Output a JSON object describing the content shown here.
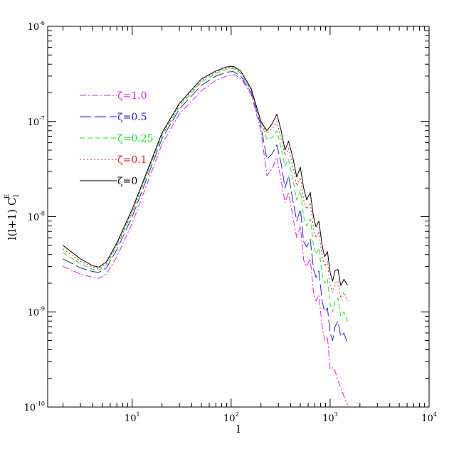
{
  "chart_data": {
    "type": "line",
    "xlabel": "l",
    "ylabel": "l(l+1) C",
    "ylabel_sub": "l",
    "ylabel_sup": "E",
    "xscale": "log",
    "yscale": "log",
    "xlim": [
      1.4,
      10000
    ],
    "ylim": [
      1e-10,
      1e-06
    ],
    "grid": false,
    "legend_position": "upper-left",
    "x_ticks": [
      {
        "value": 10,
        "base": "10",
        "exp": "1"
      },
      {
        "value": 100,
        "base": "10",
        "exp": "2"
      },
      {
        "value": 1000,
        "base": "10",
        "exp": "3"
      },
      {
        "value": 10000,
        "base": "10",
        "exp": "4"
      }
    ],
    "y_ticks": [
      {
        "value": 1e-10,
        "base": "10",
        "exp": "-10"
      },
      {
        "value": 1e-09,
        "base": "10",
        "exp": "-9"
      },
      {
        "value": 1e-08,
        "base": "10",
        "exp": "-8"
      },
      {
        "value": 1e-07,
        "base": "10",
        "exp": "-7"
      },
      {
        "value": 1e-06,
        "base": "10",
        "exp": "-6"
      }
    ],
    "series": [
      {
        "name": "ζ=1.0",
        "color": "#e020e0",
        "dash": "9,3,2,3",
        "x": [
          2,
          3,
          4,
          4.6,
          5.5,
          7,
          10,
          15,
          20,
          30,
          50,
          70,
          90,
          110,
          130,
          160,
          200,
          230,
          260,
          290,
          320,
          350,
          380,
          420,
          460,
          500,
          540,
          580,
          630,
          680,
          720,
          770,
          830,
          880,
          940,
          1000,
          1060,
          1120,
          1200,
          1280,
          1380,
          1500
        ],
        "y": [
          3e-09,
          2.5e-09,
          2.3e-09,
          2.25e-09,
          2.5e-09,
          3.8e-09,
          8.5e-09,
          2.6e-08,
          5.8e-08,
          1.2e-07,
          2.1e-07,
          2.7e-07,
          3e-07,
          3.1e-07,
          2.7e-07,
          1.9e-07,
          8e-08,
          2.7e-08,
          3.2e-08,
          4.2e-08,
          2.4e-08,
          1.4e-08,
          1.8e-08,
          1e-08,
          6e-09,
          8e-09,
          3.5e-09,
          3e-09,
          3.6e-09,
          1.6e-09,
          1.3e-09,
          1.5e-09,
          7e-10,
          5e-10,
          5.5e-10,
          2.5e-10,
          2.6e-10,
          2.4e-10,
          1.9e-10,
          1.6e-10,
          1.3e-10,
          1.05e-10
        ]
      },
      {
        "name": "ζ=0.5",
        "color": "#2020e0",
        "dash": "16,5",
        "x": [
          2,
          3,
          4,
          4.6,
          5.5,
          7,
          10,
          15,
          20,
          30,
          50,
          70,
          90,
          105,
          125,
          160,
          200,
          230,
          260,
          290,
          320,
          350,
          380,
          420,
          460,
          500,
          540,
          580,
          630,
          680,
          720,
          770,
          830,
          880,
          940,
          1000,
          1060,
          1120,
          1200,
          1280,
          1380,
          1500
        ],
        "y": [
          3.6e-09,
          2.9e-09,
          2.65e-09,
          2.6e-09,
          2.9e-09,
          4.5e-09,
          1e-08,
          3e-08,
          6.6e-08,
          1.35e-07,
          2.4e-07,
          3e-07,
          3.3e-07,
          3.35e-07,
          3e-07,
          2e-07,
          9e-08,
          4e-08,
          4.6e-08,
          5.7e-08,
          3.6e-08,
          2e-08,
          2.7e-08,
          1.5e-08,
          9e-09,
          1.2e-08,
          5.5e-09,
          4.8e-09,
          5.8e-09,
          2.8e-09,
          2.3e-09,
          2.7e-09,
          1.3e-09,
          1e-09,
          1.1e-09,
          6e-10,
          5e-10,
          7e-10,
          8e-10,
          5.5e-10,
          6e-10,
          4.6e-10
        ]
      },
      {
        "name": "ζ=0.25",
        "color": "#20e020",
        "dash": "7,4",
        "x": [
          2,
          3,
          4,
          4.6,
          5.5,
          7,
          10,
          15,
          20,
          30,
          50,
          70,
          90,
          105,
          125,
          160,
          200,
          230,
          260,
          290,
          320,
          350,
          380,
          420,
          460,
          500,
          540,
          580,
          630,
          680,
          720,
          770,
          830,
          880,
          940,
          1000,
          1060,
          1120,
          1200,
          1280,
          1380,
          1500
        ],
        "y": [
          4.2e-09,
          3.2e-09,
          2.8e-09,
          2.75e-09,
          3.1e-09,
          4.9e-09,
          1.1e-08,
          3.3e-08,
          7.1e-08,
          1.45e-07,
          2.6e-07,
          3.2e-07,
          3.55e-07,
          3.6e-07,
          3.2e-07,
          2.1e-07,
          1e-07,
          6.5e-08,
          6.8e-08,
          8e-08,
          5.2e-08,
          3.4e-08,
          4e-08,
          2.5e-08,
          1.5e-08,
          1.9e-08,
          1e-08,
          8e-09,
          9.5e-09,
          5e-09,
          4e-09,
          4.7e-09,
          2.5e-09,
          2e-09,
          2.2e-09,
          1.2e-09,
          1e-09,
          1.3e-09,
          1.4e-09,
          9e-10,
          1e-09,
          8e-10
        ]
      },
      {
        "name": "ζ=0.1",
        "color": "#e02020",
        "dash": "2,3",
        "x": [
          2,
          3,
          4,
          4.6,
          5.5,
          7,
          10,
          15,
          20,
          30,
          50,
          70,
          90,
          105,
          125,
          160,
          200,
          230,
          260,
          290,
          320,
          350,
          380,
          420,
          460,
          500,
          540,
          580,
          630,
          680,
          720,
          770,
          830,
          880,
          940,
          1000,
          1060,
          1120,
          1200,
          1280,
          1380,
          1500
        ],
        "y": [
          4.6e-09,
          3.4e-09,
          2.95e-09,
          2.85e-09,
          3.25e-09,
          5.1e-09,
          1.15e-08,
          3.4e-08,
          7.4e-08,
          1.5e-07,
          2.7e-07,
          3.3e-07,
          3.65e-07,
          3.7e-07,
          3.3e-07,
          2.15e-07,
          1e-07,
          7.5e-08,
          8.5e-08,
          1e-07,
          6.5e-08,
          4.4e-08,
          5.2e-08,
          3.4e-08,
          2.1e-08,
          2.6e-08,
          1.5e-08,
          1.2e-08,
          1.4e-08,
          7.5e-09,
          6e-09,
          7e-09,
          3.8e-09,
          3e-09,
          3.4e-09,
          1.9e-09,
          1.6e-09,
          2e-09,
          2.1e-09,
          1.4e-09,
          1.6e-09,
          1.3e-09
        ]
      },
      {
        "name": "ζ=0",
        "color": "#000000",
        "dash": "",
        "x": [
          2,
          3,
          4,
          4.6,
          5.5,
          7,
          10,
          15,
          20,
          30,
          50,
          70,
          90,
          105,
          125,
          160,
          200,
          230,
          260,
          290,
          320,
          350,
          380,
          420,
          460,
          500,
          540,
          580,
          630,
          680,
          720,
          770,
          830,
          880,
          940,
          1000,
          1060,
          1120,
          1200,
          1280,
          1380,
          1500
        ],
        "y": [
          5e-09,
          3.6e-09,
          3.05e-09,
          2.95e-09,
          3.35e-09,
          5.3e-09,
          1.2e-08,
          3.5e-08,
          7.6e-08,
          1.55e-07,
          2.8e-07,
          3.4e-07,
          3.75e-07,
          3.8e-07,
          3.4e-07,
          2.2e-07,
          1e-07,
          8e-08,
          9.5e-08,
          1.2e-07,
          8e-08,
          5e-08,
          6.2e-08,
          4.2e-08,
          2.6e-08,
          3.3e-08,
          2e-08,
          1.5e-08,
          1.8e-08,
          1e-08,
          7.8e-09,
          9e-09,
          5e-09,
          3.8e-09,
          4.3e-09,
          2.6e-09,
          2.1e-09,
          2.7e-09,
          2.8e-09,
          1.9e-09,
          2.2e-09,
          1.9e-09
        ]
      }
    ]
  }
}
